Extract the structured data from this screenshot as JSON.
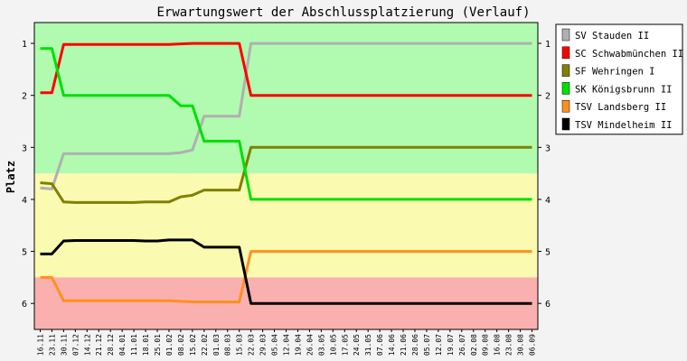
{
  "chart_data": {
    "type": "line",
    "title": "Erwartungswert der Abschlussplatzierung (Verlauf)",
    "ylabel": "Platz",
    "xlabel": "",
    "ylim": [
      0.6,
      6.5
    ],
    "y_ticks": [
      1,
      2,
      3,
      4,
      5,
      6
    ],
    "grid": false,
    "legend_position": "right",
    "zones": [
      {
        "from": 0.6,
        "to": 3.5,
        "color": "#b0fbb0"
      },
      {
        "from": 3.5,
        "to": 5.5,
        "color": "#fafab0"
      },
      {
        "from": 5.5,
        "to": 6.5,
        "color": "#fbb0b0"
      }
    ],
    "categories": [
      "16.11",
      "23.11",
      "30.11",
      "07.12",
      "14.12",
      "21.12",
      "28.12",
      "04.01",
      "11.01",
      "18.01",
      "25.01",
      "01.02",
      "08.02",
      "15.02",
      "22.02",
      "01.03",
      "08.03",
      "15.03",
      "22.03",
      "29.03",
      "05.04",
      "12.04",
      "19.04",
      "26.04",
      "03.05",
      "10.05",
      "17.05",
      "24.05",
      "31.05",
      "07.06",
      "14.06",
      "21.06",
      "28.06",
      "05.07",
      "12.07",
      "19.07",
      "26.07",
      "02.08",
      "09.08",
      "16.08",
      "23.08",
      "30.08",
      "06.09"
    ],
    "series": [
      {
        "name": "SV Stauden II",
        "color": "#b0b0b0",
        "values": [
          3.78,
          3.8,
          3.12,
          3.12,
          3.12,
          3.12,
          3.12,
          3.12,
          3.12,
          3.12,
          3.12,
          3.12,
          3.1,
          3.05,
          2.4,
          2.4,
          2.4,
          2.4,
          1.0,
          1.0,
          1.0,
          1.0,
          1.0,
          1.0,
          1.0,
          1.0,
          1.0,
          1.0,
          1.0,
          1.0,
          1.0,
          1.0,
          1.0,
          1.0,
          1.0,
          1.0,
          1.0,
          1.0,
          1.0,
          1.0,
          1.0,
          1.0,
          1.0
        ]
      },
      {
        "name": "SC Schwabmünchen II",
        "color": "#ff0000",
        "values": [
          1.95,
          1.95,
          1.02,
          1.02,
          1.02,
          1.02,
          1.02,
          1.02,
          1.02,
          1.02,
          1.02,
          1.02,
          1.01,
          1.0,
          1.0,
          1.0,
          1.0,
          1.0,
          2.0,
          2.0,
          2.0,
          2.0,
          2.0,
          2.0,
          2.0,
          2.0,
          2.0,
          2.0,
          2.0,
          2.0,
          2.0,
          2.0,
          2.0,
          2.0,
          2.0,
          2.0,
          2.0,
          2.0,
          2.0,
          2.0,
          2.0,
          2.0,
          2.0
        ]
      },
      {
        "name": "SF Wehringen I",
        "color": "#808000",
        "values": [
          3.68,
          3.7,
          4.05,
          4.06,
          4.06,
          4.06,
          4.06,
          4.06,
          4.06,
          4.05,
          4.05,
          4.05,
          3.95,
          3.92,
          3.82,
          3.82,
          3.82,
          3.82,
          3.0,
          3.0,
          3.0,
          3.0,
          3.0,
          3.0,
          3.0,
          3.0,
          3.0,
          3.0,
          3.0,
          3.0,
          3.0,
          3.0,
          3.0,
          3.0,
          3.0,
          3.0,
          3.0,
          3.0,
          3.0,
          3.0,
          3.0,
          3.0,
          3.0
        ]
      },
      {
        "name": "SK Königsbrunn II",
        "color": "#00e000",
        "values": [
          1.1,
          1.1,
          2.0,
          2.0,
          2.0,
          2.0,
          2.0,
          2.0,
          2.0,
          2.0,
          2.0,
          2.0,
          2.2,
          2.2,
          2.88,
          2.88,
          2.88,
          2.88,
          4.0,
          4.0,
          4.0,
          4.0,
          4.0,
          4.0,
          4.0,
          4.0,
          4.0,
          4.0,
          4.0,
          4.0,
          4.0,
          4.0,
          4.0,
          4.0,
          4.0,
          4.0,
          4.0,
          4.0,
          4.0,
          4.0,
          4.0,
          4.0,
          4.0
        ]
      },
      {
        "name": "TSV Landsberg II",
        "color": "#ff9020",
        "values": [
          5.5,
          5.5,
          5.95,
          5.95,
          5.95,
          5.95,
          5.95,
          5.95,
          5.95,
          5.95,
          5.95,
          5.95,
          5.96,
          5.97,
          5.97,
          5.97,
          5.97,
          5.97,
          5.0,
          5.0,
          5.0,
          5.0,
          5.0,
          5.0,
          5.0,
          5.0,
          5.0,
          5.0,
          5.0,
          5.0,
          5.0,
          5.0,
          5.0,
          5.0,
          5.0,
          5.0,
          5.0,
          5.0,
          5.0,
          5.0,
          5.0,
          5.0,
          5.0
        ]
      },
      {
        "name": "TSV Mindelheim II",
        "color": "#000000",
        "values": [
          5.05,
          5.05,
          4.8,
          4.79,
          4.79,
          4.79,
          4.79,
          4.79,
          4.79,
          4.8,
          4.8,
          4.78,
          4.78,
          4.78,
          4.92,
          4.92,
          4.92,
          4.92,
          6.0,
          6.0,
          6.0,
          6.0,
          6.0,
          6.0,
          6.0,
          6.0,
          6.0,
          6.0,
          6.0,
          6.0,
          6.0,
          6.0,
          6.0,
          6.0,
          6.0,
          6.0,
          6.0,
          6.0,
          6.0,
          6.0,
          6.0,
          6.0,
          6.0
        ]
      }
    ]
  }
}
